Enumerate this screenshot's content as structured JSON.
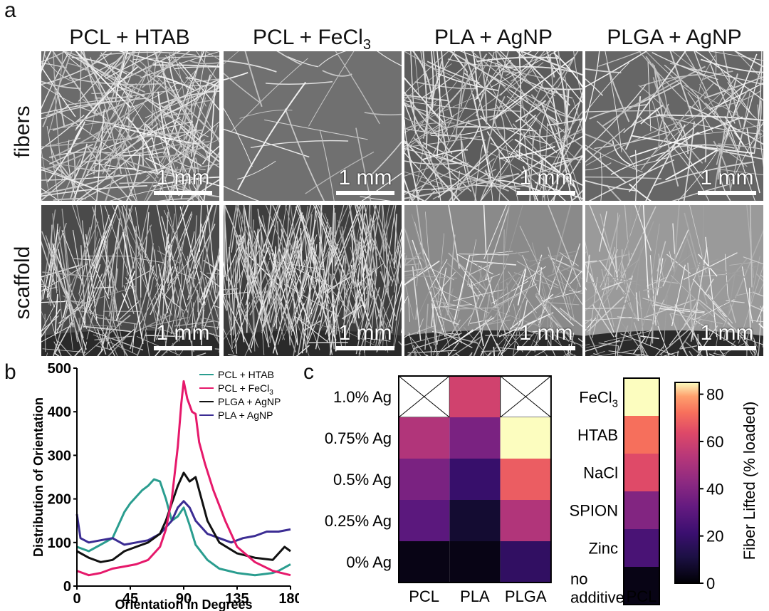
{
  "panel_a": {
    "letter": "a",
    "columns": [
      {
        "title": "PCL + HTAB"
      },
      {
        "title": "PCL + FeCl",
        "sub": "3"
      },
      {
        "title": "PLA + AgNP"
      },
      {
        "title": "PLGA + AgNP"
      }
    ],
    "rows": [
      "fibers",
      "scaffold"
    ],
    "scalebar": "1 mm"
  },
  "panel_b": {
    "letter": "b",
    "chart_data": {
      "type": "line",
      "xlabel": "Orientation in Degrees",
      "ylabel": "Distribution of Orientation",
      "xlim": [
        0,
        180
      ],
      "ylim": [
        0,
        500
      ],
      "xticks": [
        0,
        45,
        90,
        135,
        180
      ],
      "yticks": [
        0,
        100,
        200,
        300,
        400,
        500
      ],
      "legend_position": "top-right",
      "series": [
        {
          "name": "PCL + HTAB",
          "color": "#2a9d8f",
          "x": [
            0,
            10,
            20,
            30,
            40,
            45,
            55,
            60,
            65,
            70,
            75,
            80,
            85,
            90,
            95,
            100,
            110,
            120,
            135,
            150,
            165,
            170,
            180
          ],
          "y": [
            90,
            80,
            95,
            110,
            170,
            190,
            220,
            230,
            245,
            240,
            200,
            150,
            160,
            180,
            140,
            95,
            60,
            40,
            30,
            25,
            30,
            35,
            50
          ]
        },
        {
          "name": "PCL + FeCl3",
          "color": "#e6196b",
          "x": [
            0,
            10,
            20,
            30,
            40,
            50,
            60,
            70,
            75,
            80,
            85,
            88,
            90,
            93,
            97,
            100,
            103,
            108,
            115,
            125,
            135,
            150,
            165,
            180
          ],
          "y": [
            35,
            25,
            30,
            40,
            45,
            50,
            60,
            90,
            130,
            200,
            320,
            420,
            470,
            430,
            400,
            395,
            330,
            280,
            220,
            150,
            90,
            55,
            35,
            25
          ]
        },
        {
          "name": "PLGA + AgNP",
          "color": "#111111",
          "x": [
            0,
            10,
            20,
            30,
            40,
            50,
            60,
            70,
            75,
            80,
            85,
            90,
            95,
            100,
            105,
            110,
            120,
            135,
            150,
            165,
            175,
            180
          ],
          "y": [
            80,
            65,
            55,
            60,
            80,
            90,
            100,
            120,
            150,
            190,
            230,
            260,
            240,
            250,
            200,
            150,
            100,
            75,
            65,
            60,
            90,
            80
          ]
        },
        {
          "name": "PLA + AgNP",
          "color": "#3b2c93",
          "x": [
            0,
            3,
            10,
            20,
            30,
            40,
            50,
            60,
            70,
            80,
            85,
            90,
            95,
            100,
            110,
            120,
            130,
            140,
            150,
            160,
            170,
            180
          ],
          "y": [
            165,
            110,
            100,
            105,
            110,
            95,
            100,
            105,
            120,
            150,
            180,
            195,
            180,
            150,
            120,
            110,
            100,
            110,
            115,
            125,
            125,
            130
          ]
        }
      ]
    }
  },
  "panel_c": {
    "letter": "c",
    "chart_data": [
      {
        "type": "heatmap",
        "x_categories": [
          "PCL",
          "PLA",
          "PLGA"
        ],
        "y_categories": [
          "1.0% Ag",
          "0.75% Ag",
          "0.5% Ag",
          "0.25% Ag",
          "0% Ag"
        ],
        "values": [
          [
            null,
            60,
            null
          ],
          [
            52,
            38,
            85
          ],
          [
            38,
            20,
            68
          ],
          [
            30,
            8,
            52
          ],
          [
            3,
            3,
            18
          ]
        ],
        "missing_marker": "X"
      },
      {
        "type": "heatmap",
        "x_categories": [
          "PCL"
        ],
        "y_categories": [
          "FeCl3",
          "HTAB",
          "NaCl",
          "SPION",
          "Zinc",
          "no additive"
        ],
        "y_label_parts": [
          [
            "FeCl",
            "3"
          ],
          [
            "HTAB"
          ],
          [
            "NaCl"
          ],
          [
            "SPION"
          ],
          [
            "Zinc"
          ],
          [
            "no",
            "additive"
          ]
        ],
        "values": [
          [
            85
          ],
          [
            72
          ],
          [
            64
          ],
          [
            40
          ],
          [
            25
          ],
          [
            3
          ]
        ]
      }
    ],
    "colorbar": {
      "label": "Fiber Lifted (% loaded)",
      "ticks": [
        0,
        20,
        40,
        60,
        80
      ],
      "range": [
        0,
        85
      ]
    }
  }
}
